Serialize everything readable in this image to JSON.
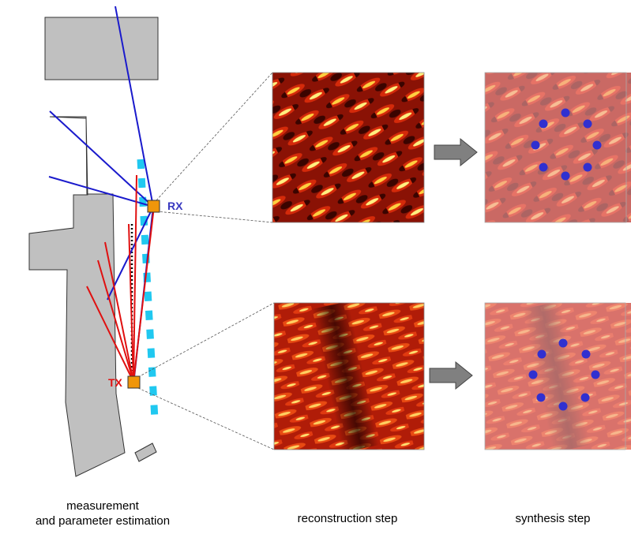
{
  "labels": {
    "rx": "RX",
    "tx": "TX"
  },
  "captions": {
    "measurement_line1": "measurement",
    "measurement_line2": "and parameter estimation",
    "reconstruction": "reconstruction step",
    "synthesis": "synthesis step"
  },
  "colors": {
    "building": "#c0c0c0",
    "building_stroke": "#333333",
    "rx_rays": "#1a1acc",
    "tx_rays": "#e01010",
    "device": "#f0960a",
    "path_dashes": "#20c8f0",
    "arrow": "#808080",
    "dots": "#3030d0",
    "rx_label": "#3838c0",
    "tx_label": "#e01010"
  },
  "icons": {
    "arrow_1": "right-arrow-icon",
    "arrow_2": "right-arrow-icon"
  }
}
